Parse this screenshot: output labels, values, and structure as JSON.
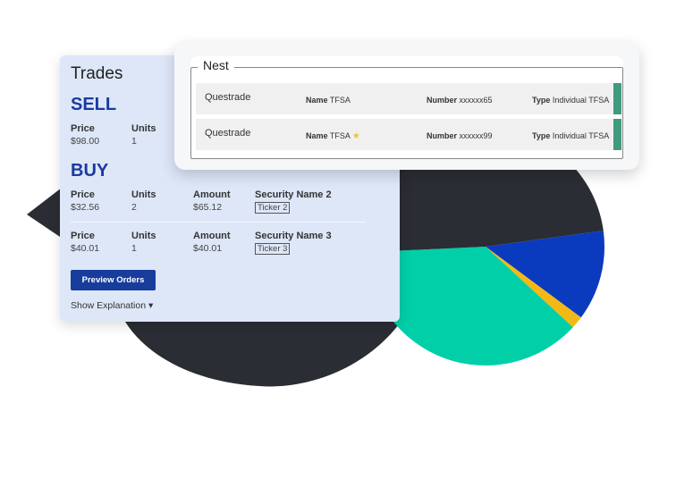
{
  "trades": {
    "title": "Trades",
    "sell": {
      "heading": "SELL",
      "price_label": "Price",
      "price": "$98.00",
      "units_label": "Units",
      "units": "1"
    },
    "buy": {
      "heading": "BUY",
      "orders": [
        {
          "price_label": "Price",
          "price": "$32.56",
          "units_label": "Units",
          "units": "2",
          "amount_label": "Amount",
          "amount": "$65.12",
          "security": "Security Name 2",
          "ticker": "Ticker 2"
        },
        {
          "price_label": "Price",
          "price": "$40.01",
          "units_label": "Units",
          "units": "1",
          "amount_label": "Amount",
          "amount": "$40.01",
          "security": "Security Name 3",
          "ticker": "Ticker 3"
        }
      ]
    },
    "preview_button": "Preview Orders",
    "show_explanation": "Show Explanation",
    "caret": "▾"
  },
  "nest": {
    "legend": "Nest",
    "accounts": [
      {
        "institution": "Questrade",
        "name_label": "Name",
        "name": "TFSA",
        "starred": false,
        "number_label": "Number",
        "number": "xxxxxx65",
        "type_label": "Type",
        "type": "Individual TFSA"
      },
      {
        "institution": "Questrade",
        "name_label": "Name",
        "name": "TFSA",
        "starred": true,
        "number_label": "Number",
        "number": "xxxxxx99",
        "type_label": "Type",
        "type": "Individual TFSA"
      }
    ],
    "star_icon": "★",
    "accent": "#3f9a80"
  },
  "chart_data": {
    "type": "pie",
    "values": [
      12.3,
      1.7,
      37.4,
      48.6
    ],
    "colors": [
      "#0a3bbf",
      "#f3b814",
      "#00cfa8",
      "#2a2d33"
    ]
  }
}
